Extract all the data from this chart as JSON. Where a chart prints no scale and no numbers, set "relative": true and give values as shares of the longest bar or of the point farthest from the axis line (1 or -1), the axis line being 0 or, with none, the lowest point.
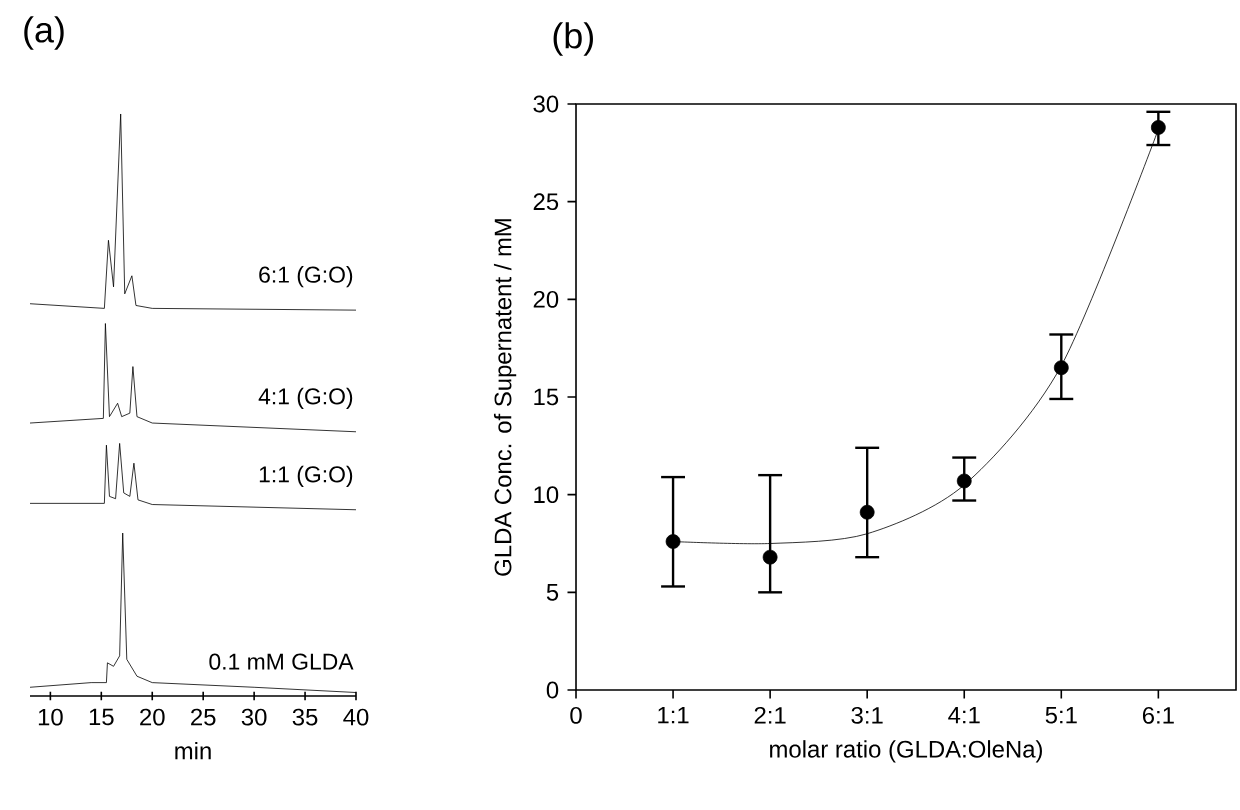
{
  "chart_data": [
    {
      "type": "line",
      "title": "(a)",
      "xlabel": "min",
      "relative": true,
      "xlim": [
        8,
        40
      ],
      "xticks": [
        10,
        15,
        20,
        25,
        30,
        35,
        40
      ],
      "series": [
        {
          "name": "0.1 mM GLDA",
          "color": "#000000",
          "x": [
            8,
            14,
            15.5,
            15.6,
            16.2,
            16.8,
            17.1,
            17.5,
            18.5,
            20,
            30,
            40
          ],
          "values": [
            0.015,
            0.023,
            0.023,
            0.057,
            0.051,
            0.069,
            0.28,
            0.063,
            0.034,
            0.023,
            0.015,
            0.006
          ]
        },
        {
          "name": "1:1 (G:O)",
          "color": "#000000",
          "x": [
            8,
            15.3,
            15.5,
            15.8,
            16.4,
            16.8,
            17.2,
            17.8,
            18.2,
            18.6,
            20,
            40
          ],
          "values": [
            0.331,
            0.331,
            0.431,
            0.343,
            0.339,
            0.434,
            0.349,
            0.343,
            0.4,
            0.337,
            0.329,
            0.32
          ]
        },
        {
          "name": "4:1 (G:O)",
          "color": "#000000",
          "x": [
            8,
            15.2,
            15.4,
            15.8,
            16.6,
            17.0,
            17.8,
            18.1,
            18.5,
            20,
            40
          ],
          "values": [
            0.469,
            0.477,
            0.64,
            0.48,
            0.503,
            0.48,
            0.486,
            0.566,
            0.48,
            0.469,
            0.454
          ]
        },
        {
          "name": "6:1 (G:O)",
          "color": "#000000",
          "x": [
            8,
            15.3,
            15.7,
            16.2,
            16.9,
            17.3,
            18.0,
            18.4,
            20,
            40
          ],
          "values": [
            0.674,
            0.666,
            0.783,
            0.703,
            1.0,
            0.691,
            0.722,
            0.671,
            0.666,
            0.663
          ]
        }
      ]
    },
    {
      "type": "scatter",
      "title": "(b)",
      "xlabel": "molar ratio (GLDA:OleNa)",
      "ylabel": "GLDA Conc. of Supernatent / mM",
      "categories": [
        "0",
        "1:1",
        "2:1",
        "3:1",
        "4:1",
        "5:1",
        "6:1"
      ],
      "ylim": [
        0,
        30
      ],
      "yticks": [
        0,
        5,
        10,
        15,
        20,
        25,
        30
      ],
      "marker": "circle",
      "series": [
        {
          "color": "#000000",
          "values": [
            null,
            7.6,
            6.8,
            9.1,
            10.7,
            16.5,
            28.8
          ],
          "errors": [
            null,
            [
              5.3,
              10.9
            ],
            [
              5.0,
              11.0
            ],
            [
              6.8,
              12.4
            ],
            [
              9.7,
              11.9
            ],
            [
              14.9,
              18.2
            ],
            [
              27.9,
              29.6
            ]
          ]
        },
        {
          "type": "line",
          "color": "#000000",
          "marker": "none",
          "values": [
            null,
            7.6,
            7.5,
            8.0,
            10.5,
            16.6,
            28.7
          ]
        }
      ]
    }
  ]
}
